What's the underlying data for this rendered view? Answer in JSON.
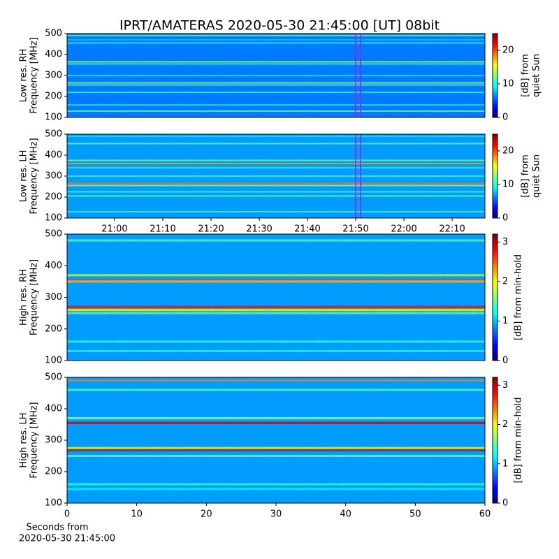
{
  "chart_data": [
    {
      "type": "heatmap",
      "title": "IPRT/AMATERAS 2020-05-30 21:45:00 [UT]   08bit",
      "ylabel": [
        "Low res. RH",
        "Frequency [MHz]"
      ],
      "ylim": [
        100,
        500
      ],
      "yticks": [
        100,
        200,
        300,
        400,
        500
      ],
      "xlim": [
        1250.15,
        1336.8
      ],
      "vlines": [
        1310,
        1311
      ],
      "vline_color": "#cc00ff",
      "base": 6,
      "bands": [
        {
          "freq": 490,
          "level": 12
        },
        {
          "freq": 470,
          "level": 8
        },
        {
          "freq": 455,
          "level": 10
        },
        {
          "freq": 365,
          "level": 14
        },
        {
          "freq": 355,
          "level": 10
        },
        {
          "freq": 300,
          "level": 9
        },
        {
          "freq": 265,
          "level": 13
        },
        {
          "freq": 255,
          "level": 11
        },
        {
          "freq": 220,
          "level": 10
        },
        {
          "freq": 160,
          "level": 9
        },
        {
          "freq": 130,
          "level": 12
        }
      ],
      "colorbar": {
        "label": [
          "[dB] from",
          "quiet Sun"
        ],
        "lim": [
          0,
          25
        ],
        "ticks": [
          0,
          10,
          20
        ]
      }
    },
    {
      "type": "heatmap",
      "ylabel": [
        "Low res. LH",
        "Frequency [MHz]"
      ],
      "ylim": [
        100,
        500
      ],
      "yticks": [
        100,
        200,
        300,
        400,
        500
      ],
      "xlim": [
        1250.15,
        1336.8
      ],
      "xticks": [
        {
          "value": 1260,
          "label": "21:00"
        },
        {
          "value": 1270,
          "label": "21:10"
        },
        {
          "value": 1280,
          "label": "21:20"
        },
        {
          "value": 1290,
          "label": "21:30"
        },
        {
          "value": 1300,
          "label": "21:40"
        },
        {
          "value": 1310,
          "label": "21:50"
        },
        {
          "value": 1320,
          "label": "22:00"
        },
        {
          "value": 1330,
          "label": "22:10"
        }
      ],
      "vlines": [
        1310,
        1311
      ],
      "vline_color": "#cc00ff",
      "base": 7,
      "bands": [
        {
          "freq": 490,
          "level": 9
        },
        {
          "freq": 455,
          "level": 12
        },
        {
          "freq": 375,
          "level": 13
        },
        {
          "freq": 360,
          "level": 18
        },
        {
          "freq": 340,
          "level": 10
        },
        {
          "freq": 300,
          "level": 11
        },
        {
          "freq": 265,
          "level": 19
        },
        {
          "freq": 255,
          "level": 14
        },
        {
          "freq": 225,
          "level": 11
        },
        {
          "freq": 205,
          "level": 12
        },
        {
          "freq": 130,
          "level": 11
        }
      ],
      "colorbar": {
        "label": [
          "[dB] from",
          "quiet Sun"
        ],
        "lim": [
          0,
          25
        ],
        "ticks": [
          0,
          10,
          20
        ]
      }
    },
    {
      "type": "heatmap",
      "ylabel": [
        "High res. RH",
        "Frequency [MHz]"
      ],
      "ylim": [
        100,
        500
      ],
      "yticks": [
        100,
        200,
        300,
        400,
        500
      ],
      "xlim": [
        0,
        60
      ],
      "base": 0.9,
      "bands": [
        {
          "freq": 480,
          "level": 1.5
        },
        {
          "freq": 370,
          "level": 1.8
        },
        {
          "freq": 355,
          "level": 2.6
        },
        {
          "freq": 350,
          "level": 2.2
        },
        {
          "freq": 270,
          "level": 2.8
        },
        {
          "freq": 260,
          "level": 2.0
        },
        {
          "freq": 250,
          "level": 1.6
        },
        {
          "freq": 160,
          "level": 1.4
        },
        {
          "freq": 130,
          "level": 1.3
        }
      ],
      "colorbar": {
        "label": [
          "[dB] from min-hold"
        ],
        "lim": [
          0,
          3.2
        ],
        "ticks": [
          0,
          1,
          2,
          3
        ]
      }
    },
    {
      "type": "heatmap",
      "ylabel": [
        "High res. LH",
        "Frequency [MHz]"
      ],
      "ylim": [
        100,
        500
      ],
      "yticks": [
        100,
        200,
        300,
        400,
        500
      ],
      "xlim": [
        0,
        60
      ],
      "xticks": [
        0,
        10,
        20,
        30,
        40,
        50,
        60
      ],
      "xlabel": [
        "Seconds from",
        "2020-05-30 21:45:00"
      ],
      "base": 0.9,
      "bands": [
        {
          "freq": 490,
          "level": 2.4
        },
        {
          "freq": 460,
          "level": 1.5
        },
        {
          "freq": 370,
          "level": 1.8
        },
        {
          "freq": 355,
          "level": 3.0
        },
        {
          "freq": 275,
          "level": 2.0
        },
        {
          "freq": 268,
          "level": 2.9
        },
        {
          "freq": 250,
          "level": 1.6
        },
        {
          "freq": 160,
          "level": 1.4
        },
        {
          "freq": 145,
          "level": 1.2
        }
      ],
      "colorbar": {
        "label": [
          "[dB] from min-hold"
        ],
        "lim": [
          0,
          3.2
        ],
        "ticks": [
          0,
          1,
          2,
          3
        ]
      }
    }
  ]
}
